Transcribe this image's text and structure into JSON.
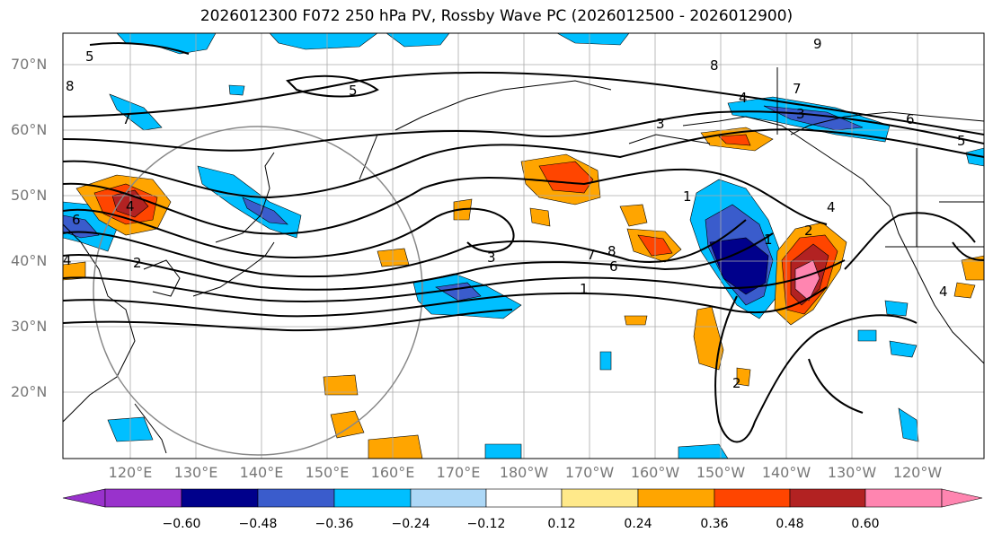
{
  "title": "2026012300 F072 250 hPa PV, Rossby Wave PC (2026012500 - 2026012900)",
  "lat_labels": [
    "70°N",
    "60°N",
    "50°N",
    "40°N",
    "30°N",
    "20°N"
  ],
  "lon_labels": [
    "120°E",
    "130°E",
    "140°E",
    "150°E",
    "160°E",
    "170°E",
    "180°W",
    "170°W",
    "160°W",
    "150°W",
    "140°W",
    "130°W",
    "120°W"
  ],
  "colorbar": {
    "ticks": [
      "−0.60",
      "−0.48",
      "−0.36",
      "−0.24",
      "−0.12",
      "0.12",
      "0.24",
      "0.36",
      "0.48",
      "0.60"
    ],
    "colors": [
      "#9932cc",
      "#00008b",
      "#3a5ccc",
      "#00bfff",
      "#add8f7",
      "#ffffff",
      "#ffe98a",
      "#ffa500",
      "#ff4500",
      "#b22222",
      "#ff85b0",
      "#ff85b0"
    ]
  },
  "contour_labels": [
    "9",
    "8",
    "8",
    "7",
    "7",
    "6",
    "6",
    "5",
    "5",
    "4",
    "4",
    "3",
    "3",
    "3",
    "2",
    "2",
    "1",
    "1",
    "2",
    "6",
    "7",
    "8",
    "4",
    "1",
    "4",
    "5",
    "4"
  ],
  "colors": {
    "pos1": "#ffa500",
    "pos2": "#ff4500",
    "pos3": "#b22222",
    "pos4": "#ff85b0",
    "neg1": "#00bfff",
    "neg2": "#3a5ccc",
    "neg3": "#00008b",
    "neg4": "#9932cc",
    "grid": "#aaaaaa",
    "label": "#777777"
  }
}
